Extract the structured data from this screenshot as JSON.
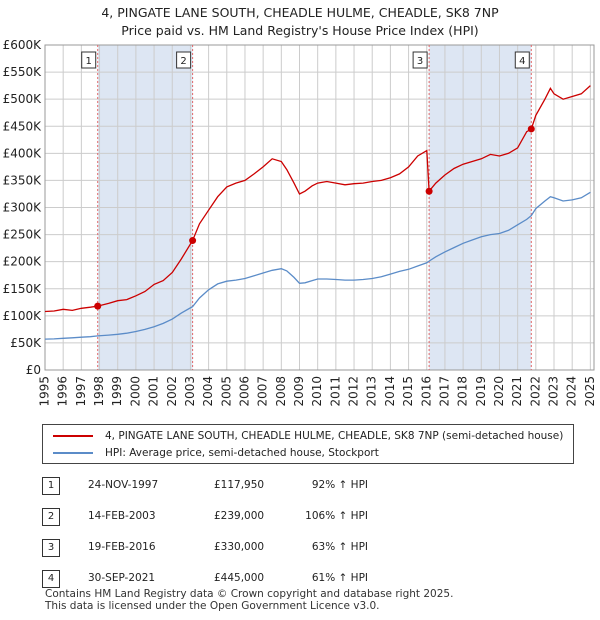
{
  "title": {
    "line1": "4, PINGATE LANE SOUTH, CHEADLE HULME, CHEADLE, SK8 7NP",
    "line2": "Price paid vs. HM Land Registry's House Price Index (HPI)"
  },
  "colors": {
    "property": "#cc0000",
    "hpi": "#5b8cc8",
    "shade": "#dde6f3",
    "grid": "#cccccc",
    "marker_line": "#e06666"
  },
  "chart_data": {
    "type": "line",
    "title": "4, PINGATE LANE SOUTH, CHEADLE HULME, CHEADLE, SK8 7NP — Price paid vs. HM Land Registry's House Price Index (HPI)",
    "xlim": [
      1995,
      2025.2
    ],
    "ylim": [
      0,
      600000
    ],
    "x_ticks": [
      1995,
      1996,
      1997,
      1998,
      1999,
      2000,
      2001,
      2002,
      2003,
      2004,
      2005,
      2006,
      2007,
      2008,
      2009,
      2010,
      2011,
      2012,
      2013,
      2014,
      2015,
      2016,
      2017,
      2018,
      2019,
      2020,
      2021,
      2022,
      2023,
      2024,
      2025
    ],
    "x_tick_labels": [
      "1995",
      "1996",
      "1997",
      "1998",
      "1999",
      "2000",
      "2001",
      "2002",
      "2003",
      "2004",
      "2005",
      "2006",
      "2007",
      "2008",
      "2009",
      "2010",
      "2011",
      "2012",
      "2013",
      "2014",
      "2015",
      "2016",
      "2017",
      "2018",
      "2019",
      "2020",
      "2021",
      "2022",
      "2023",
      "2024",
      "2025"
    ],
    "y_ticks": [
      0,
      50000,
      100000,
      150000,
      200000,
      250000,
      300000,
      350000,
      400000,
      450000,
      500000,
      550000,
      600000
    ],
    "y_tick_labels": [
      "£0",
      "£50K",
      "£100K",
      "£150K",
      "£200K",
      "£250K",
      "£300K",
      "£350K",
      "£400K",
      "£450K",
      "£500K",
      "£550K",
      "£600K"
    ],
    "grid": true,
    "shaded_periods": [
      [
        1997.9,
        2003.12
      ],
      [
        2016.13,
        2021.75
      ]
    ],
    "series": [
      {
        "name": "4, PINGATE LANE SOUTH, CHEADLE HULME, CHEADLE, SK8 7NP (semi-detached house)",
        "color": "#cc0000",
        "x": [
          1995.0,
          1995.5,
          1996.0,
          1996.5,
          1997.0,
          1997.5,
          1997.9,
          1998.5,
          1999.0,
          1999.5,
          2000.0,
          2000.5,
          2001.0,
          2001.5,
          2002.0,
          2002.5,
          2003.12,
          2003.5,
          2004.0,
          2004.5,
          2005.0,
          2005.5,
          2006.0,
          2006.5,
          2007.0,
          2007.5,
          2008.0,
          2008.3,
          2008.7,
          2009.0,
          2009.3,
          2009.7,
          2010.0,
          2010.5,
          2011.0,
          2011.5,
          2012.0,
          2012.5,
          2013.0,
          2013.5,
          2014.0,
          2014.5,
          2015.0,
          2015.5,
          2016.0,
          2016.13,
          2016.5,
          2017.0,
          2017.5,
          2018.0,
          2018.5,
          2019.0,
          2019.5,
          2020.0,
          2020.5,
          2021.0,
          2021.5,
          2021.75,
          2022.0,
          2022.5,
          2022.8,
          2023.0,
          2023.5,
          2024.0,
          2024.5,
          2025.0
        ],
        "y": [
          108000,
          109000,
          112000,
          110000,
          114000,
          116000,
          117950,
          123000,
          128000,
          130000,
          137000,
          145000,
          158000,
          165000,
          180000,
          205000,
          239000,
          270000,
          295000,
          320000,
          338000,
          345000,
          350000,
          362000,
          375000,
          390000,
          385000,
          370000,
          345000,
          325000,
          330000,
          340000,
          345000,
          348000,
          345000,
          342000,
          344000,
          345000,
          348000,
          350000,
          355000,
          362000,
          375000,
          395000,
          405000,
          330000,
          345000,
          360000,
          372000,
          380000,
          385000,
          390000,
          398000,
          395000,
          400000,
          410000,
          440000,
          445000,
          470000,
          500000,
          520000,
          510000,
          500000,
          505000,
          510000,
          525000
        ]
      },
      {
        "name": "HPI: Average price, semi-detached house, Stockport",
        "color": "#5b8cc8",
        "x": [
          1995.0,
          1995.5,
          1996.0,
          1996.5,
          1997.0,
          1997.5,
          1997.9,
          1998.5,
          1999.0,
          1999.5,
          2000.0,
          2000.5,
          2001.0,
          2001.5,
          2002.0,
          2002.5,
          2003.12,
          2003.5,
          2004.0,
          2004.5,
          2005.0,
          2005.5,
          2006.0,
          2006.5,
          2007.0,
          2007.5,
          2008.0,
          2008.3,
          2008.7,
          2009.0,
          2009.3,
          2009.7,
          2010.0,
          2010.5,
          2011.0,
          2011.5,
          2012.0,
          2012.5,
          2013.0,
          2013.5,
          2014.0,
          2014.5,
          2015.0,
          2015.5,
          2016.0,
          2016.13,
          2016.5,
          2017.0,
          2017.5,
          2018.0,
          2018.5,
          2019.0,
          2019.5,
          2020.0,
          2020.5,
          2021.0,
          2021.5,
          2021.75,
          2022.0,
          2022.5,
          2022.8,
          2023.0,
          2023.5,
          2024.0,
          2024.5,
          2025.0
        ],
        "y": [
          57000,
          57500,
          58500,
          59500,
          60500,
          61500,
          63000,
          64500,
          66000,
          68000,
          71000,
          75000,
          80000,
          86000,
          94000,
          105000,
          117000,
          133000,
          148000,
          159000,
          164000,
          166000,
          169000,
          174000,
          179000,
          184000,
          187000,
          183000,
          171000,
          160000,
          161000,
          165000,
          168000,
          168000,
          167000,
          166000,
          166000,
          167000,
          169000,
          172000,
          177000,
          182000,
          186000,
          192000,
          198000,
          201000,
          209000,
          218000,
          226000,
          234000,
          240000,
          246000,
          250000,
          252000,
          258000,
          268000,
          278000,
          285000,
          298000,
          312000,
          320000,
          318000,
          312000,
          314000,
          318000,
          328000
        ]
      }
    ],
    "sales": [
      {
        "label": "1",
        "x": 1997.9,
        "y": 117950
      },
      {
        "label": "2",
        "x": 2003.12,
        "y": 239000
      },
      {
        "label": "3",
        "x": 2016.13,
        "y": 330000
      },
      {
        "label": "4",
        "x": 2021.75,
        "y": 445000
      }
    ]
  },
  "legend": {
    "property_label": "4, PINGATE LANE SOUTH, CHEADLE HULME, CHEADLE, SK8 7NP (semi-detached house)",
    "hpi_label": "HPI: Average price, semi-detached house, Stockport"
  },
  "sales_table": [
    {
      "num": "1",
      "date": "24-NOV-1997",
      "price": "£117,950",
      "hpi": "92% ↑ HPI"
    },
    {
      "num": "2",
      "date": "14-FEB-2003",
      "price": "£239,000",
      "hpi": "106% ↑ HPI"
    },
    {
      "num": "3",
      "date": "19-FEB-2016",
      "price": "£330,000",
      "hpi": "63% ↑ HPI"
    },
    {
      "num": "4",
      "date": "30-SEP-2021",
      "price": "£445,000",
      "hpi": "61% ↑ HPI"
    }
  ],
  "footer": {
    "line1": "Contains HM Land Registry data © Crown copyright and database right 2025.",
    "line2": "This data is licensed under the Open Government Licence v3.0."
  }
}
